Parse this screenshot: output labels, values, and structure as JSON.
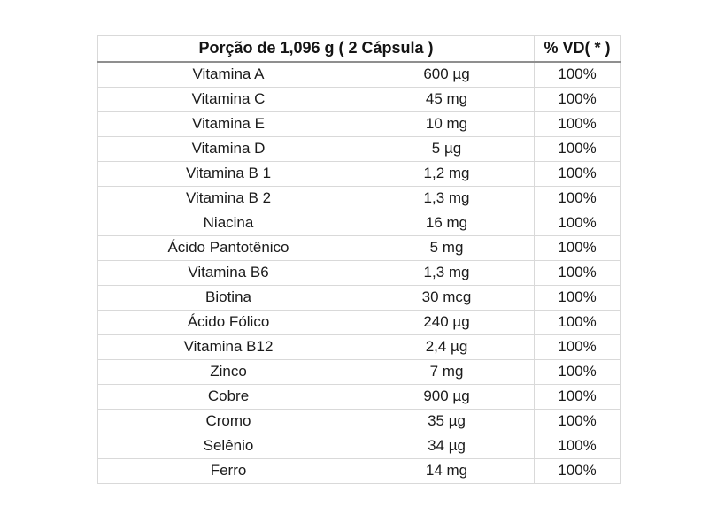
{
  "chart_data": {
    "type": "table",
    "title": "Porção de 1,096 g ( 2 Cápsula )",
    "header": {
      "portion": "Porção de 1,096 g ( 2 Cápsula )",
      "portion_colspan": 2,
      "vd": "% VD( * )"
    },
    "rows": [
      [
        "Vitamina A",
        "600 µg",
        "100%"
      ],
      [
        "Vitamina C",
        "45 mg",
        "100%"
      ],
      [
        "Vitamina E",
        "10 mg",
        "100%"
      ],
      [
        "Vitamina D",
        "5 µg",
        "100%"
      ],
      [
        "Vitamina B 1",
        "1,2 mg",
        "100%"
      ],
      [
        "Vitamina B 2",
        "1,3 mg",
        "100%"
      ],
      [
        "Niacina",
        "16 mg",
        "100%"
      ],
      [
        "Ácido Pantotênico",
        "5 mg",
        "100%"
      ],
      [
        "Vitamina B6",
        "1,3 mg",
        "100%"
      ],
      [
        "Biotina",
        "30 mcg",
        "100%"
      ],
      [
        "Ácido Fólico",
        "240 µg",
        "100%"
      ],
      [
        "Vitamina B12",
        "2,4 µg",
        "100%"
      ],
      [
        "Zinco",
        "7 mg",
        "100%"
      ],
      [
        "Cobre",
        "900 µg",
        "100%"
      ],
      [
        "Cromo",
        "35 µg",
        "100%"
      ],
      [
        "Selênio",
        "34 µg",
        "100%"
      ],
      [
        "Ferro",
        "14 mg",
        "100%"
      ]
    ],
    "layout": {
      "grid": true,
      "text_align": "center",
      "column_count": 3
    },
    "colors": {
      "background": "#ffffff",
      "text": "#1b1b1b",
      "row_border": "#d9d9d9",
      "header_border": "#8f8f8f"
    }
  }
}
